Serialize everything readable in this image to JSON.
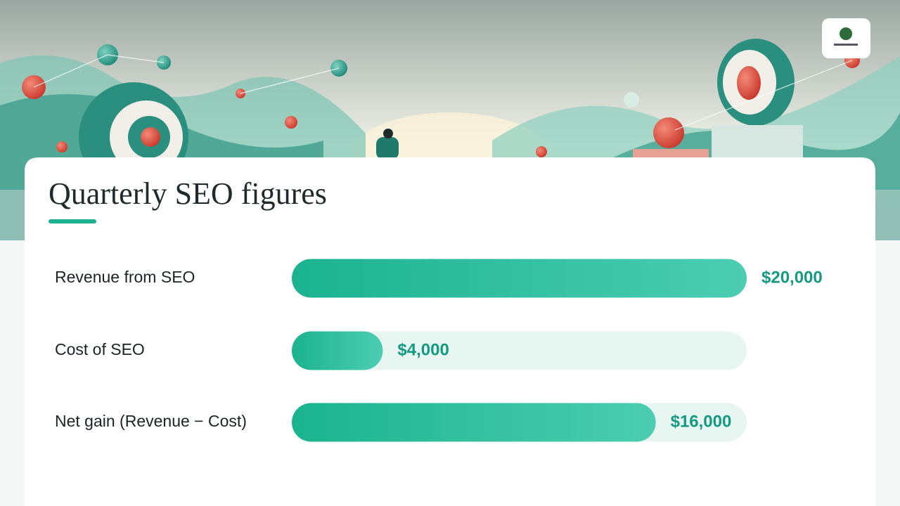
{
  "chart_data": {
    "type": "hbar",
    "title": "Quarterly SEO figures",
    "categories": [
      "Revenue from SEO",
      "Cost of SEO",
      "Net gain (Revenue − Cost)"
    ],
    "values": [
      20000,
      4000,
      16000
    ],
    "value_labels": [
      "$20,000",
      "$4,000",
      "$16,000"
    ],
    "xlim": [
      0,
      20000
    ],
    "color": "#1bb38f"
  }
}
